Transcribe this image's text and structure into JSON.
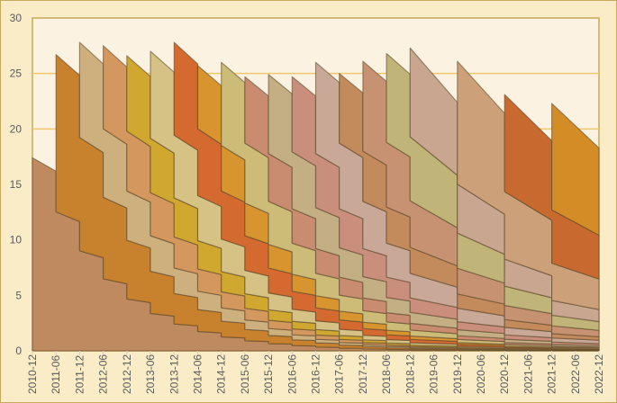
{
  "chart_data": {
    "type": "area",
    "title": "",
    "xlabel": "",
    "ylabel": "",
    "ylim": [
      0,
      30
    ],
    "yticks": [
      0,
      5,
      10,
      15,
      20,
      25,
      30
    ],
    "grid": true,
    "legend": "none",
    "categories": [
      "2010-12",
      "2011-06",
      "2011-12",
      "2012-06",
      "2012-12",
      "2013-06",
      "2013-12",
      "2014-06",
      "2014-12",
      "2015-06",
      "2015-12",
      "2016-06",
      "2016-12",
      "2017-06",
      "2017-12",
      "2018-06",
      "2018-12",
      "2019-06",
      "2019-12",
      "2020-06",
      "2020-12",
      "2021-06",
      "2021-12",
      "2022-06",
      "2022-12"
    ],
    "cohorts": [
      {
        "start": "2010-12",
        "periods": 1,
        "total_at_start": 17.4,
        "color": "#c08a60"
      },
      {
        "start": "2011-06",
        "periods": 1,
        "total_at_start": 26.7,
        "color": "#c8822e"
      },
      {
        "start": "2011-12",
        "periods": 1,
        "total_at_start": 27.8,
        "color": "#cdb07e"
      },
      {
        "start": "2012-06",
        "periods": 1,
        "total_at_start": 27.5,
        "color": "#d4985e"
      },
      {
        "start": "2012-12",
        "periods": 1,
        "total_at_start": 26.6,
        "color": "#d0a830"
      },
      {
        "start": "2013-06",
        "periods": 1,
        "total_at_start": 27.0,
        "color": "#d6c285"
      },
      {
        "start": "2013-12",
        "periods": 1,
        "total_at_start": 27.8,
        "color": "#d56a30"
      },
      {
        "start": "2014-06",
        "periods": 1,
        "total_at_start": 25.7,
        "color": "#d8952f"
      },
      {
        "start": "2014-12",
        "periods": 1,
        "total_at_start": 26.0,
        "color": "#cdbb78"
      },
      {
        "start": "2015-06",
        "periods": 1,
        "total_at_start": 24.7,
        "color": "#c98c70"
      },
      {
        "start": "2015-12",
        "periods": 1,
        "total_at_start": 24.9,
        "color": "#c4ae84"
      },
      {
        "start": "2016-06",
        "periods": 1,
        "total_at_start": 24.7,
        "color": "#c98e7c"
      },
      {
        "start": "2016-12",
        "periods": 1,
        "total_at_start": 26.0,
        "color": "#c9a898"
      },
      {
        "start": "2017-06",
        "periods": 1,
        "total_at_start": 25.0,
        "color": "#c38a5c"
      },
      {
        "start": "2017-12",
        "periods": 1,
        "total_at_start": 26.1,
        "color": "#c69272"
      },
      {
        "start": "2018-06",
        "periods": 1,
        "total_at_start": 26.8,
        "color": "#c0b478"
      },
      {
        "start": "2018-12",
        "periods": 2,
        "total_at_start": 27.3,
        "color": "#c8a690"
      },
      {
        "start": "2019-12",
        "periods": 2,
        "total_at_start": 26.1,
        "color": "#cca078"
      },
      {
        "start": "2020-12",
        "periods": 2,
        "total_at_start": 23.1,
        "color": "#c86a30"
      },
      {
        "start": "2021-12",
        "periods": 2,
        "total_at_start": 22.3,
        "color": "#d48c26"
      }
    ]
  },
  "colors": {
    "plot_bg": "#fbf2e1",
    "frame_bg": "#f9ecc7",
    "grid": "#f0c870",
    "border": "#c8a95c"
  }
}
